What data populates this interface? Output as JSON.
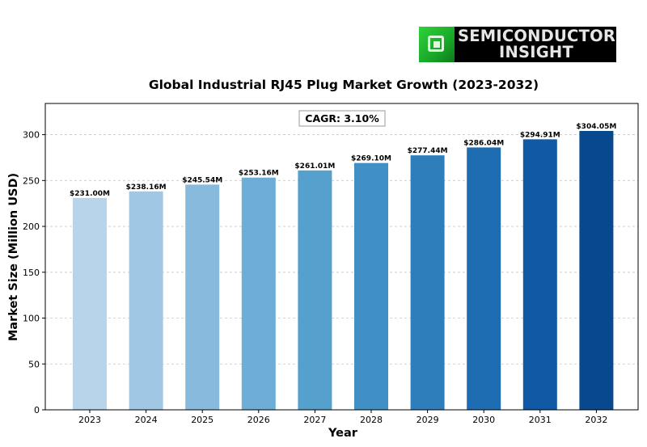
{
  "logo": {
    "line1": "SEMICONDUCTOR",
    "line2": "INSIGHT"
  },
  "chart_data": {
    "type": "bar",
    "title": "Global Industrial RJ45 Plug Market Growth (2023-2032)",
    "xlabel": "Year",
    "ylabel": "Market Size (Million USD)",
    "annotation": "CAGR: 3.10%",
    "categories": [
      "2023",
      "2024",
      "2025",
      "2026",
      "2027",
      "2028",
      "2029",
      "2030",
      "2031",
      "2032"
    ],
    "values": [
      231.0,
      238.16,
      245.54,
      253.16,
      261.01,
      269.1,
      277.44,
      286.04,
      294.91,
      304.05
    ],
    "data_labels": [
      "$231.00M",
      "$238.16M",
      "$245.54M",
      "$253.16M",
      "$261.01M",
      "$269.10M",
      "$277.44M",
      "$286.04M",
      "$294.91M",
      "$304.05M"
    ],
    "yticks": [
      0,
      50,
      100,
      150,
      200,
      250,
      300
    ],
    "ylim": [
      0,
      334
    ],
    "grid": "y-dashed",
    "colors": [
      "#b7d4ea",
      "#a0c8e4",
      "#87badc",
      "#6eaed6",
      "#56a0ce",
      "#4190c5",
      "#2f7ebc",
      "#1e6cb2",
      "#1159a4",
      "#08488e"
    ]
  }
}
